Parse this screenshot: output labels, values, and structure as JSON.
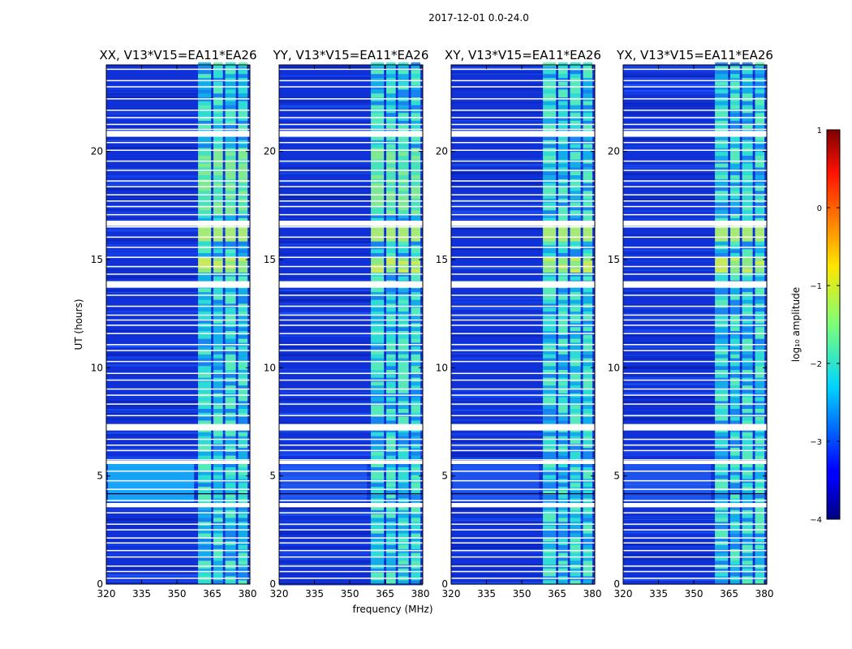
{
  "chart_data": {
    "type": "heatmap",
    "title": "2017-12-01 0.0-24.0",
    "xlabel": "frequency (MHz)",
    "ylabel": "UT (hours)",
    "xlim": [
      320,
      381
    ],
    "ylim": [
      0,
      24
    ],
    "xticks": [
      320,
      335,
      350,
      365,
      380
    ],
    "yticks": [
      0,
      5,
      10,
      15,
      20
    ],
    "panels": [
      {
        "name": "XX",
        "title": "XX, V13*V15=EA11*EA26"
      },
      {
        "name": "YY",
        "title": "YY, V13*V15=EA11*EA26"
      },
      {
        "name": "XY",
        "title": "XY, V13*V15=EA11*EA26"
      },
      {
        "name": "YX",
        "title": "YX, V13*V15=EA11*EA26"
      }
    ],
    "bright_bands_mhz": [
      [
        359,
        364.5
      ],
      [
        365.5,
        369.5
      ],
      [
        370.5,
        375
      ],
      [
        376,
        380
      ]
    ],
    "colorbar": {
      "label": "log₁₀ amplitude",
      "min": -4,
      "max": 1,
      "ticks": [
        -4,
        -3,
        -2,
        -1,
        0,
        1
      ],
      "colormap": "jet"
    }
  }
}
